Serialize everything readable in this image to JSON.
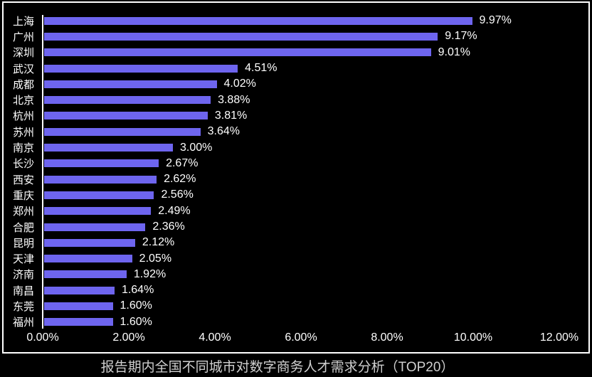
{
  "colors": {
    "background": "#000000",
    "bar": "#6E65EF",
    "axis_line": "#FFFFFF",
    "label_text": "#FFFFFF",
    "title_text": "#CFCFCF",
    "frame_border": "#FFFFFF"
  },
  "chart_data": {
    "type": "bar",
    "orientation": "horizontal",
    "title": "报告期内全国不同城市对数字商务人才需求分析（TOP20）",
    "categories": [
      "上海",
      "广州",
      "深圳",
      "武汉",
      "成都",
      "北京",
      "杭州",
      "苏州",
      "南京",
      "长沙",
      "西安",
      "重庆",
      "郑州",
      "合肥",
      "昆明",
      "天津",
      "济南",
      "南昌",
      "东莞",
      "福州"
    ],
    "values": [
      9.97,
      9.17,
      9.01,
      4.51,
      4.02,
      3.88,
      3.81,
      3.64,
      3.0,
      2.67,
      2.62,
      2.56,
      2.49,
      2.36,
      2.12,
      2.05,
      1.92,
      1.64,
      1.6,
      1.6
    ],
    "value_labels": [
      "9.97%",
      "9.17%",
      "9.01%",
      "4.51%",
      "4.02%",
      "3.88%",
      "3.81%",
      "3.64%",
      "3.00%",
      "2.67%",
      "2.62%",
      "2.56%",
      "2.49%",
      "2.36%",
      "2.12%",
      "2.05%",
      "1.92%",
      "1.64%",
      "1.60%",
      "1.60%"
    ],
    "x_ticks": [
      "0.00%",
      "2.00%",
      "4.00%",
      "6.00%",
      "8.00%",
      "10.00%",
      "12.00%"
    ],
    "xlim": [
      0,
      12
    ],
    "xlabel": "",
    "ylabel": "",
    "grid": false,
    "legend": false
  }
}
